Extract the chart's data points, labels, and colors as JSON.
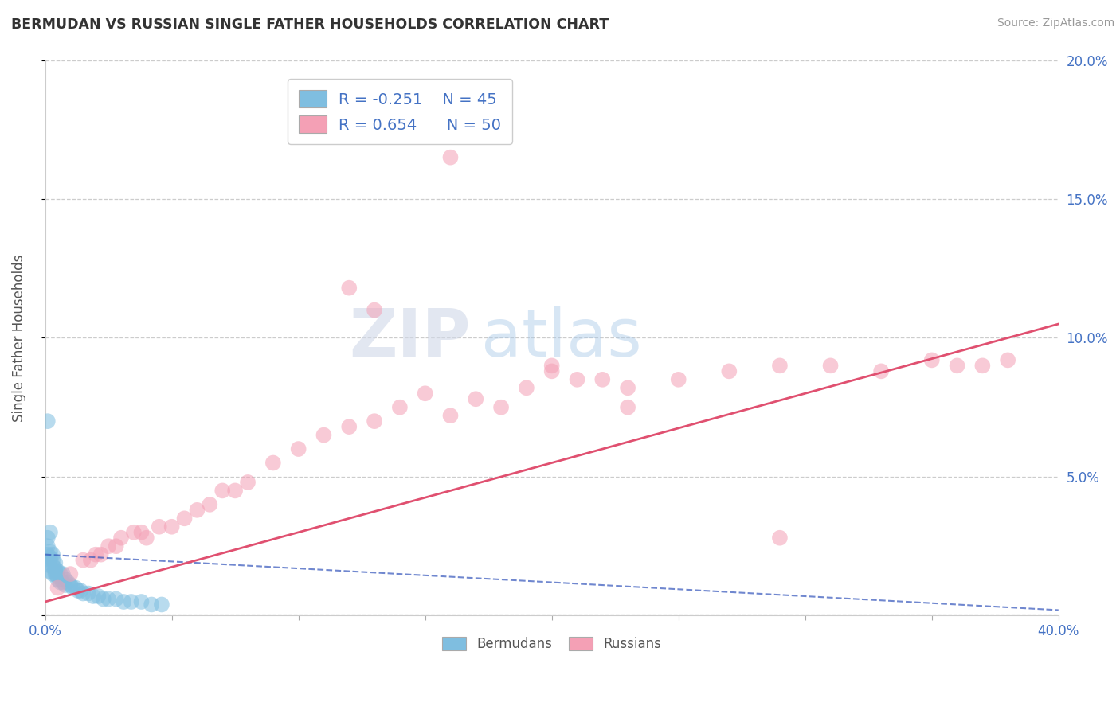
{
  "title": "BERMUDAN VS RUSSIAN SINGLE FATHER HOUSEHOLDS CORRELATION CHART",
  "source": "Source: ZipAtlas.com",
  "ylabel": "Single Father Households",
  "xlim": [
    0.0,
    0.4
  ],
  "ylim": [
    0.0,
    0.2
  ],
  "xticks": [
    0.0,
    0.05,
    0.1,
    0.15,
    0.2,
    0.25,
    0.3,
    0.35,
    0.4
  ],
  "xticklabels": [
    "0.0%",
    "",
    "",
    "",
    "",
    "",
    "",
    "",
    "40.0%"
  ],
  "yticks": [
    0.0,
    0.05,
    0.1,
    0.15,
    0.2
  ],
  "yticklabels_right": [
    "",
    "5.0%",
    "10.0%",
    "15.0%",
    "20.0%"
  ],
  "legend_R_bermuda": "-0.251",
  "legend_N_bermuda": "45",
  "legend_R_russia": "0.654",
  "legend_N_russia": "50",
  "bermuda_color": "#7fbee0",
  "russia_color": "#f4a0b5",
  "bermuda_line_color": "#3355bb",
  "russia_line_color": "#e05070",
  "watermark_zip": "ZIP",
  "watermark_atlas": "atlas",
  "background_color": "#ffffff",
  "bermuda_scatter_x": [
    0.001,
    0.001,
    0.001,
    0.002,
    0.002,
    0.002,
    0.002,
    0.002,
    0.003,
    0.003,
    0.003,
    0.003,
    0.004,
    0.004,
    0.004,
    0.004,
    0.005,
    0.005,
    0.005,
    0.006,
    0.006,
    0.007,
    0.007,
    0.008,
    0.008,
    0.009,
    0.01,
    0.011,
    0.012,
    0.013,
    0.014,
    0.015,
    0.017,
    0.019,
    0.021,
    0.023,
    0.025,
    0.028,
    0.031,
    0.034,
    0.038,
    0.042,
    0.046,
    0.001,
    0.002
  ],
  "bermuda_scatter_y": [
    0.025,
    0.022,
    0.028,
    0.023,
    0.02,
    0.018,
    0.016,
    0.021,
    0.02,
    0.018,
    0.015,
    0.022,
    0.017,
    0.019,
    0.015,
    0.016,
    0.016,
    0.014,
    0.013,
    0.015,
    0.012,
    0.015,
    0.012,
    0.013,
    0.011,
    0.012,
    0.011,
    0.01,
    0.01,
    0.009,
    0.009,
    0.008,
    0.008,
    0.007,
    0.007,
    0.006,
    0.006,
    0.006,
    0.005,
    0.005,
    0.005,
    0.004,
    0.004,
    0.07,
    0.03
  ],
  "russia_scatter_x": [
    0.005,
    0.01,
    0.015,
    0.018,
    0.02,
    0.022,
    0.025,
    0.028,
    0.03,
    0.035,
    0.038,
    0.04,
    0.045,
    0.05,
    0.055,
    0.06,
    0.065,
    0.07,
    0.075,
    0.08,
    0.09,
    0.1,
    0.11,
    0.12,
    0.13,
    0.14,
    0.15,
    0.16,
    0.17,
    0.18,
    0.19,
    0.2,
    0.21,
    0.22,
    0.23,
    0.25,
    0.27,
    0.29,
    0.31,
    0.33,
    0.35,
    0.36,
    0.37,
    0.38,
    0.29,
    0.12,
    0.16,
    0.2,
    0.23,
    0.13
  ],
  "russia_scatter_y": [
    0.01,
    0.015,
    0.02,
    0.02,
    0.022,
    0.022,
    0.025,
    0.025,
    0.028,
    0.03,
    0.03,
    0.028,
    0.032,
    0.032,
    0.035,
    0.038,
    0.04,
    0.045,
    0.045,
    0.048,
    0.055,
    0.06,
    0.065,
    0.068,
    0.07,
    0.075,
    0.08,
    0.072,
    0.078,
    0.075,
    0.082,
    0.088,
    0.085,
    0.085,
    0.082,
    0.085,
    0.088,
    0.09,
    0.09,
    0.088,
    0.092,
    0.09,
    0.09,
    0.092,
    0.028,
    0.118,
    0.165,
    0.09,
    0.075,
    0.11
  ],
  "russia_trendline_x": [
    0.0,
    0.4
  ],
  "russia_trendline_y": [
    0.005,
    0.105
  ],
  "bermuda_trendline_x": [
    0.0,
    0.4
  ],
  "bermuda_trendline_y": [
    0.022,
    0.002
  ]
}
